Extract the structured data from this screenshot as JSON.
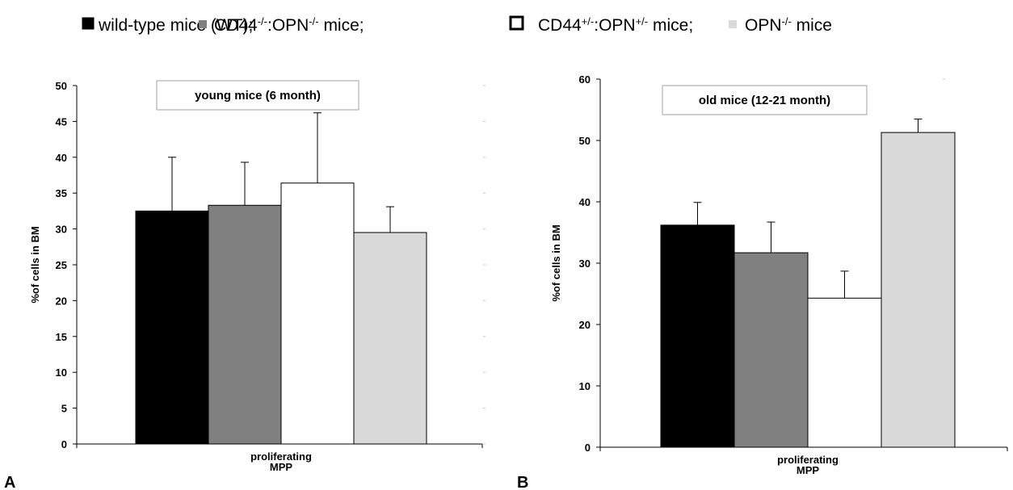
{
  "legend": {
    "items": [
      {
        "text": "wild-type mice (WT); ",
        "color": "#000000",
        "style": "filled"
      },
      {
        "text": "CD44",
        "sup1": "-/-",
        "mid": ":OPN",
        "sup2": "-/-",
        "tail": " mice; ",
        "color": "#808080",
        "style": "filled"
      },
      {
        "text": "CD44",
        "sup1": "+/-",
        "mid": ":OPN",
        "sup2": "+/-",
        "tail": " mice; ",
        "color": "#ffffff",
        "style": "outline"
      },
      {
        "text": "OPN",
        "sup1": "-/-",
        "tail": " mice",
        "color": "#d9d9d9",
        "style": "filled"
      }
    ]
  },
  "chart_data": [
    {
      "type": "bar",
      "panel": "A",
      "title": "young mice (6 month)",
      "ylabel": "%of cells in BM",
      "categories": [
        "proliferating",
        "MPP"
      ],
      "ylim": [
        0,
        50
      ],
      "yticks": [
        0,
        5,
        10,
        15,
        20,
        25,
        30,
        35,
        40,
        45,
        50
      ],
      "series": [
        {
          "value": 32.5,
          "error": 7.5,
          "color": "#000000"
        },
        {
          "value": 33.3,
          "error": 6.0,
          "color": "#808080"
        },
        {
          "value": 36.4,
          "error": 9.8,
          "color": "#ffffff"
        },
        {
          "value": 29.5,
          "error": 3.6,
          "color": "#d9d9d9"
        }
      ]
    },
    {
      "type": "bar",
      "panel": "B",
      "title": "old mice (12-21 month)",
      "ylabel": "%of cells in BM",
      "categories": [
        "proliferating",
        "MPP"
      ],
      "ylim": [
        0,
        60
      ],
      "yticks": [
        0,
        10,
        20,
        30,
        40,
        50,
        60
      ],
      "series": [
        {
          "value": 36.2,
          "error": 3.7,
          "color": "#000000"
        },
        {
          "value": 31.7,
          "error": 5.0,
          "color": "#808080"
        },
        {
          "value": 24.3,
          "error": 4.4,
          "color": "#ffffff"
        },
        {
          "value": 51.3,
          "error": 2.2,
          "color": "#d9d9d9"
        }
      ]
    }
  ]
}
